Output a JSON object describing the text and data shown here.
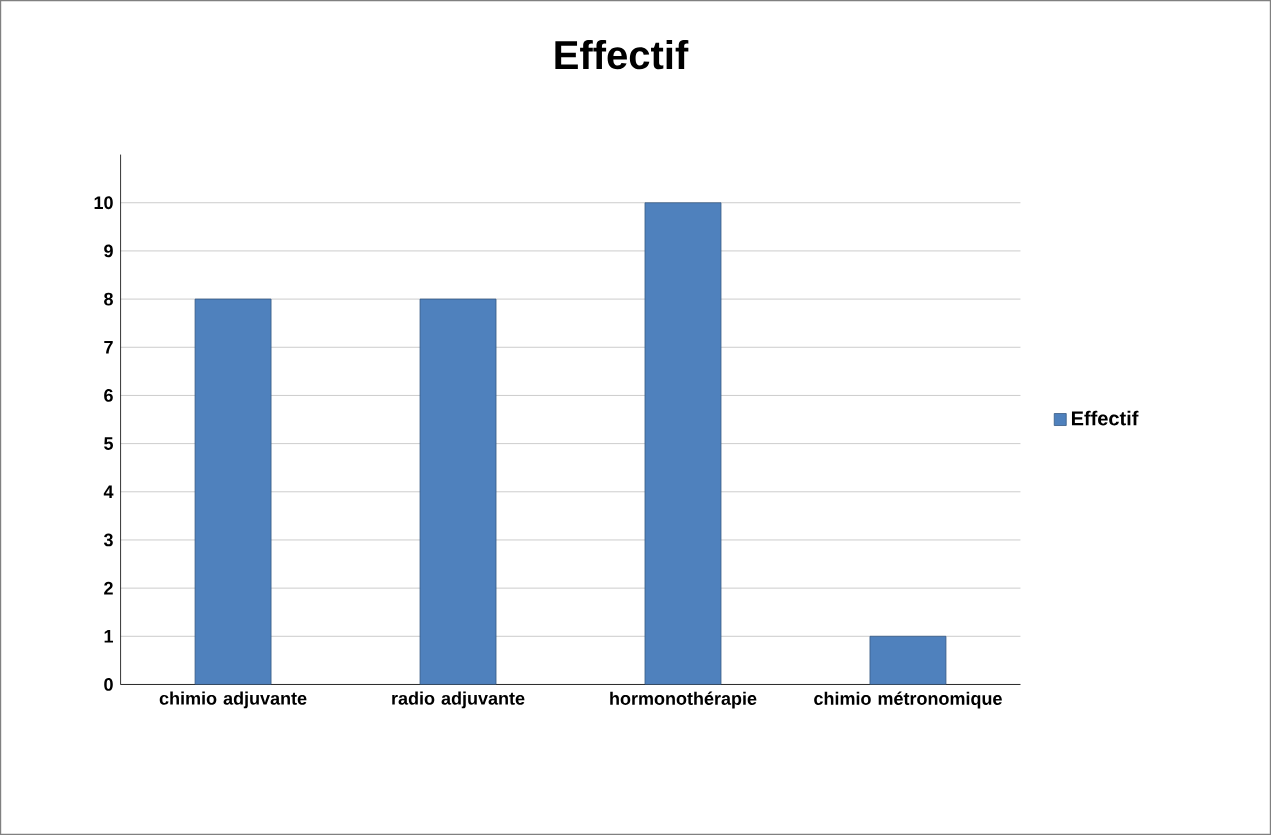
{
  "chart_data": {
    "type": "bar",
    "title": "Effectif",
    "categories": [
      "chimio adjuvante",
      "radio adjuvante",
      "hormonothérapie",
      "chimio métronomique"
    ],
    "series": [
      {
        "name": "Effectif",
        "color": "#4f81bd",
        "values": [
          8,
          8,
          10,
          1
        ]
      }
    ],
    "ylim": [
      0,
      11
    ],
    "yticks": [
      0,
      1,
      2,
      3,
      4,
      5,
      6,
      7,
      8,
      9,
      10
    ],
    "grid": "y",
    "legend": "right"
  }
}
